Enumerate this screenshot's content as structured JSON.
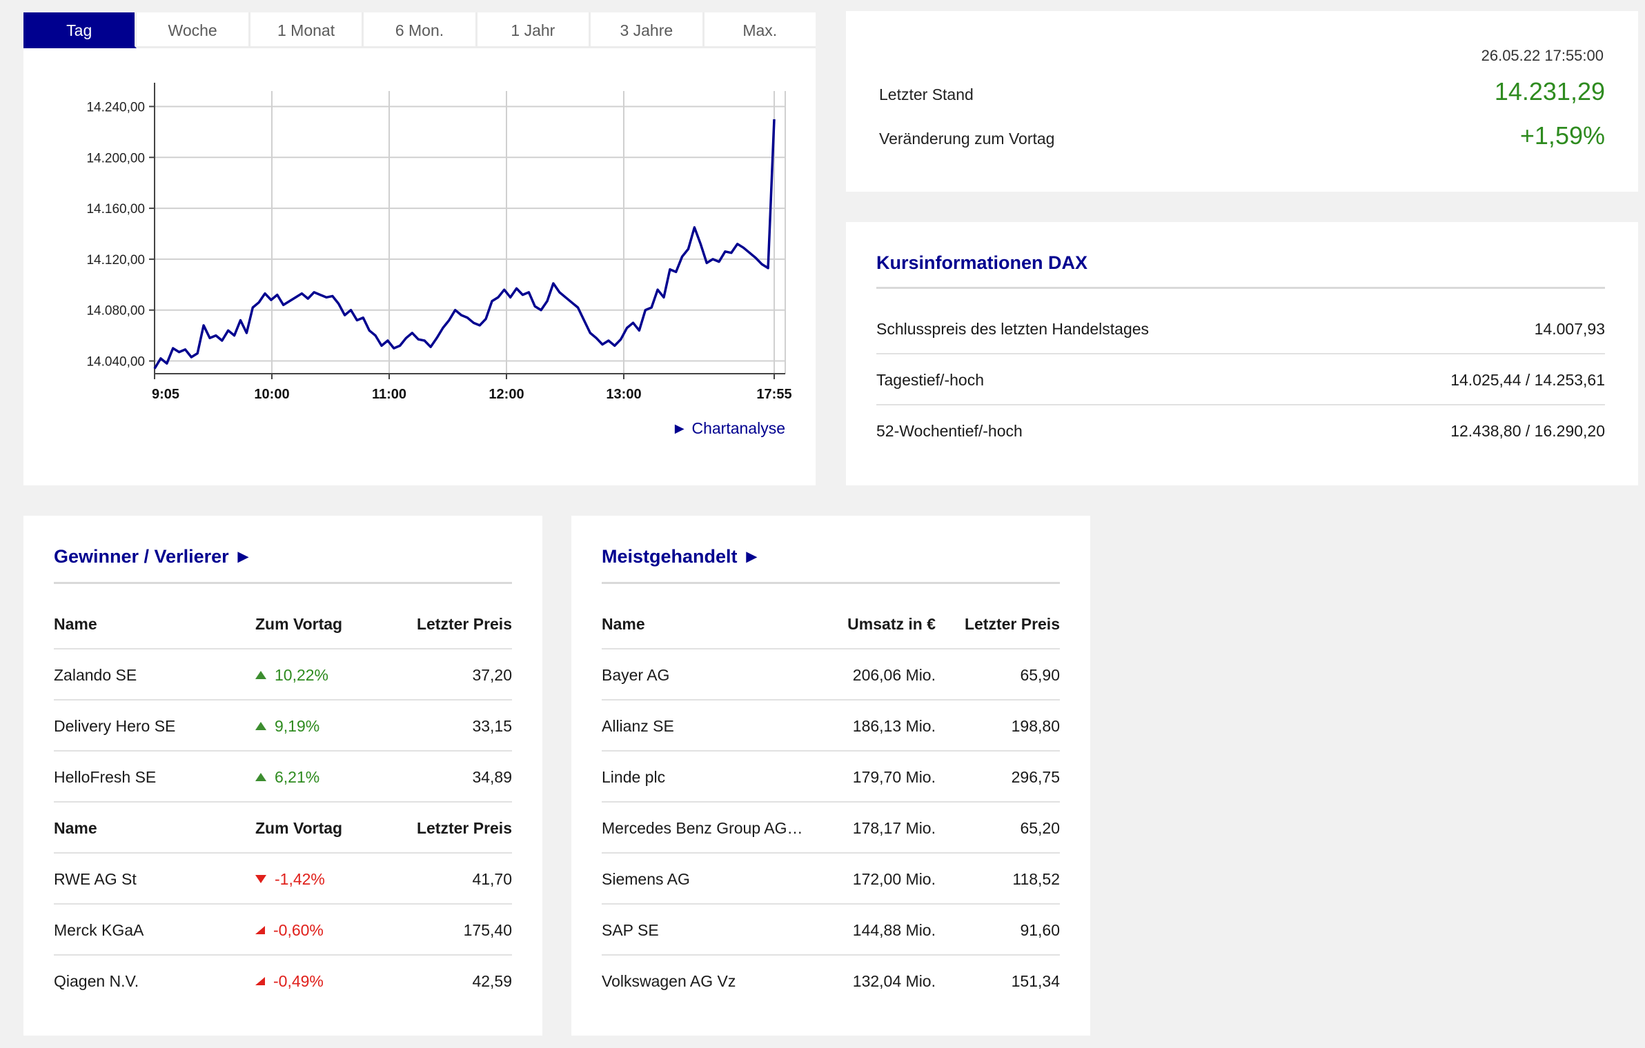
{
  "tabs": [
    {
      "label": "Tag",
      "active": true
    },
    {
      "label": "Woche",
      "active": false
    },
    {
      "label": "1 Monat",
      "active": false
    },
    {
      "label": "6 Mon.",
      "active": false
    },
    {
      "label": "1 Jahr",
      "active": false
    },
    {
      "label": "3 Jahre",
      "active": false
    },
    {
      "label": "Max.",
      "active": false
    }
  ],
  "chart_link": "► Chartanalyse",
  "chart_data": {
    "type": "line",
    "y_ticks": [
      "14.040,00",
      "14.080,00",
      "14.120,00",
      "14.160,00",
      "14.200,00",
      "14.240,00"
    ],
    "y_tick_values": [
      14040,
      14080,
      14120,
      14160,
      14200,
      14240
    ],
    "ylim": [
      14030,
      14250
    ],
    "x_ticks": [
      "9:05",
      "10:00",
      "11:00",
      "12:00",
      "13:00",
      "17:55"
    ],
    "grid": true,
    "line_color": "#00008f",
    "series": [
      {
        "values": [
          14034,
          14042,
          14038,
          14050,
          14047,
          14049,
          14043,
          14046,
          14068,
          14058,
          14060,
          14056,
          14064,
          14060,
          14072,
          14062,
          14082,
          14086,
          14093,
          14088,
          14092,
          14084,
          14087,
          14090,
          14093,
          14089,
          14094,
          14092,
          14090,
          14091,
          14085,
          14076,
          14080,
          14072,
          14074,
          14064,
          14060,
          14052,
          14056,
          14050,
          14052,
          14058,
          14062,
          14057,
          14056,
          14051,
          14058,
          14066,
          14072,
          14080,
          14076,
          14074,
          14070,
          14068,
          14073,
          14087,
          14090,
          14096,
          14090,
          14097,
          14092,
          14094,
          14083,
          14080,
          14087,
          14101,
          14094,
          14090,
          14086,
          14082,
          14072,
          14062,
          14058,
          14053,
          14056,
          14052,
          14057,
          14066,
          14070,
          14064,
          14080,
          14082,
          14096,
          14090,
          14112,
          14110,
          14122,
          14128,
          14145,
          14132,
          14117,
          14120,
          14118,
          14126,
          14125,
          14132,
          14129,
          14125,
          14121,
          14116,
          14113,
          14230
        ]
      }
    ]
  },
  "quote": {
    "datetime": "26.05.22 17:55:00",
    "last_label": "Letzter Stand",
    "last_value": "14.231,29",
    "change_label": "Veränderung zum Vortag",
    "change_value": "+1,59%",
    "value_color": "#2e8b1f"
  },
  "info": {
    "title": "Kursinformationen DAX",
    "rows": [
      {
        "label": "Schlusspreis des letzten Handelstages",
        "value": "14.007,93"
      },
      {
        "label": "Tagestief/-hoch",
        "value": "14.025,44 / 14.253,61"
      },
      {
        "label": "52-Wochentief/-hoch",
        "value": "12.438,80 / 16.290,20"
      }
    ]
  },
  "gainers_losers": {
    "title": "Gewinner / Verlierer ►",
    "header": {
      "name": "Name",
      "change": "Zum Vortag",
      "price": "Letzter Preis"
    },
    "gainers": [
      {
        "name": "Zalando SE",
        "change": "10,22%",
        "price": "37,20",
        "icon": "triangle-up-icon"
      },
      {
        "name": "Delivery Hero SE",
        "change": "9,19%",
        "price": "33,15",
        "icon": "triangle-up-icon"
      },
      {
        "name": "HelloFresh SE",
        "change": "6,21%",
        "price": "34,89",
        "icon": "triangle-up-icon"
      }
    ],
    "losers": [
      {
        "name": "RWE AG St",
        "change": "-1,42%",
        "price": "41,70",
        "icon": "triangle-down-icon"
      },
      {
        "name": "Merck KGaA",
        "change": "-0,60%",
        "price": "175,40",
        "icon": "triangle-diagonal-down-icon"
      },
      {
        "name": "Qiagen N.V.",
        "change": "-0,49%",
        "price": "42,59",
        "icon": "triangle-diagonal-down-icon"
      }
    ]
  },
  "most_traded": {
    "title": "Meistgehandelt ►",
    "header": {
      "name": "Name",
      "turnover": "Umsatz in €",
      "price": "Letzter Preis"
    },
    "rows": [
      {
        "name": "Bayer AG",
        "turnover": "206,06 Mio.",
        "price": "65,90"
      },
      {
        "name": "Allianz SE",
        "turnover": "186,13 Mio.",
        "price": "198,80"
      },
      {
        "name": "Linde plc",
        "turnover": "179,70 Mio.",
        "price": "296,75"
      },
      {
        "name": "Mercedes Benz Group AG…",
        "turnover": "178,17 Mio.",
        "price": "65,20"
      },
      {
        "name": "Siemens AG",
        "turnover": "172,00 Mio.",
        "price": "118,52"
      },
      {
        "name": "SAP SE",
        "turnover": "144,88 Mio.",
        "price": "91,60"
      },
      {
        "name": "Volkswagen AG Vz",
        "turnover": "132,04 Mio.",
        "price": "151,34"
      }
    ]
  }
}
